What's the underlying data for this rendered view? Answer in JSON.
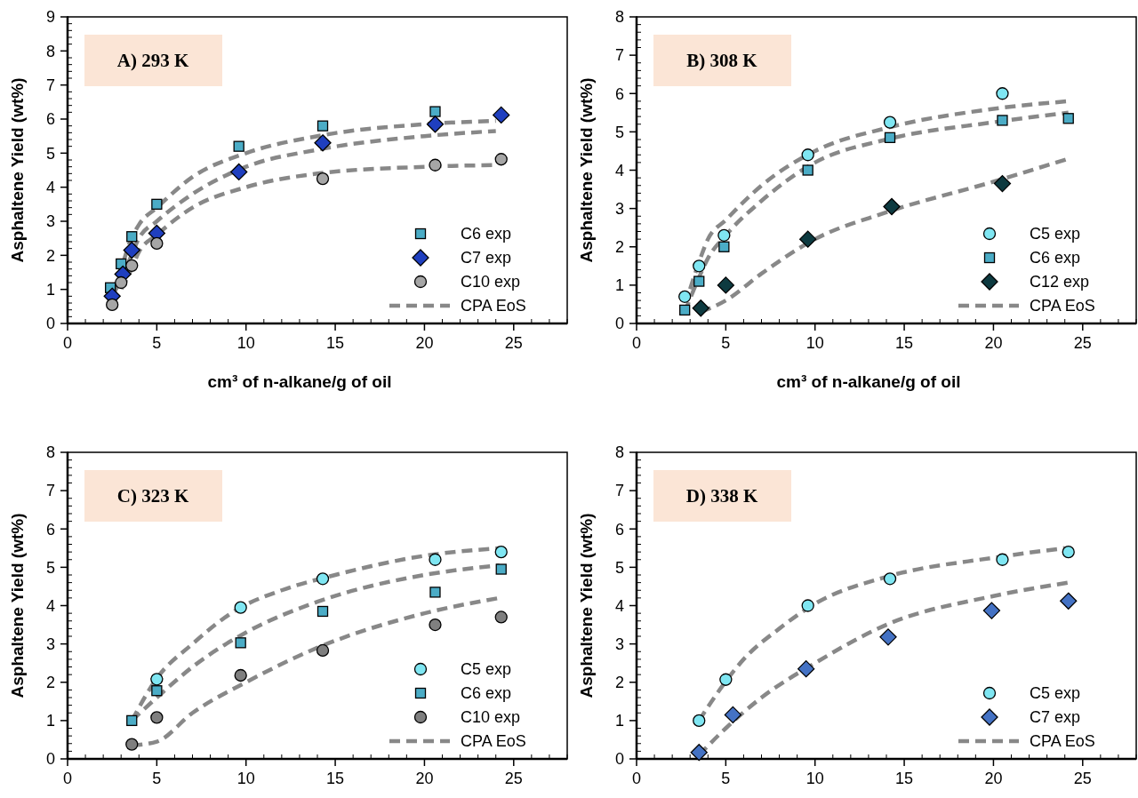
{
  "chart_data": [
    {
      "type": "scatter",
      "title": "A) 293 K",
      "xlabel": "cm³ of n-alkane/g of oil",
      "ylabel": "Asphaltene Yield (wt%)",
      "xlim": [
        0,
        28
      ],
      "xticks": [
        0,
        5,
        10,
        15,
        20,
        25
      ],
      "ylim": [
        0,
        9
      ],
      "yticks": [
        0,
        1,
        2,
        3,
        4,
        5,
        6,
        7,
        8,
        9
      ],
      "legend": "bottom right",
      "series": [
        {
          "name": "C6 exp",
          "marker": "square",
          "color": "#4bacc6",
          "x": [
            2.4,
            3.0,
            3.6,
            5.0,
            9.6,
            14.3,
            20.6
          ],
          "values": [
            1.05,
            1.75,
            2.55,
            3.5,
            5.2,
            5.8,
            6.22
          ]
        },
        {
          "name": "C7 exp",
          "marker": "diamond",
          "color": "#1f3fbf",
          "x": [
            2.5,
            3.1,
            3.6,
            5.0,
            9.6,
            14.3,
            20.6,
            24.3
          ],
          "values": [
            0.8,
            1.45,
            2.15,
            2.65,
            4.45,
            5.3,
            5.85,
            6.12
          ]
        },
        {
          "name": "C10 exp",
          "marker": "circle",
          "color": "#a6a6a6",
          "x": [
            2.5,
            3.0,
            3.6,
            5.0,
            14.3,
            20.6,
            24.3
          ],
          "values": [
            0.55,
            1.2,
            1.7,
            2.35,
            4.25,
            4.65,
            4.82
          ]
        },
        {
          "name": "CPA EoS",
          "type": "line",
          "marker": "none",
          "line_style": "dashed",
          "color": "#888888",
          "x": [
            2.5,
            3,
            3.5,
            4,
            5,
            7,
            10,
            14,
            20,
            24
          ],
          "values": [
            0.9,
            1.6,
            2.4,
            2.9,
            3.4,
            4.3,
            5.0,
            5.5,
            5.85,
            5.95
          ]
        },
        {
          "type": "line",
          "marker": "none",
          "line_style": "dashed",
          "color": "#888888",
          "x": [
            2.5,
            3,
            3.5,
            4,
            5,
            7,
            10,
            14,
            20,
            24
          ],
          "values": [
            0.8,
            1.3,
            1.9,
            2.5,
            3.0,
            3.8,
            4.6,
            5.1,
            5.5,
            5.65
          ]
        },
        {
          "type": "line",
          "marker": "none",
          "line_style": "dashed",
          "color": "#888888",
          "x": [
            2.5,
            3,
            3.5,
            4,
            5,
            7,
            10,
            14,
            20,
            24
          ],
          "values": [
            0.6,
            1.0,
            1.5,
            2.1,
            2.6,
            3.4,
            4.0,
            4.4,
            4.6,
            4.65
          ]
        }
      ]
    },
    {
      "type": "scatter",
      "title": "B) 308 K",
      "xlabel": "cm³ of n-alkane/g of oil",
      "ylabel": "Asphaltene Yield (wt%)",
      "xlim": [
        0,
        28
      ],
      "xticks": [
        0,
        5,
        10,
        15,
        20,
        25
      ],
      "ylim": [
        0,
        8
      ],
      "yticks": [
        0,
        1,
        2,
        3,
        4,
        5,
        6,
        7,
        8
      ],
      "legend": "bottom right",
      "series": [
        {
          "name": "C5 exp",
          "marker": "circle",
          "color": "#7fe6f2",
          "x": [
            2.7,
            3.5,
            4.9,
            9.6,
            14.2,
            20.5
          ],
          "values": [
            0.7,
            1.5,
            2.3,
            4.4,
            5.25,
            6.0
          ]
        },
        {
          "name": "C6 exp",
          "marker": "square",
          "color": "#4bacc6",
          "x": [
            2.7,
            3.5,
            4.9,
            9.6,
            14.2,
            20.5,
            24.2
          ],
          "values": [
            0.35,
            1.1,
            2.0,
            4.0,
            4.85,
            5.3,
            5.35
          ]
        },
        {
          "name": "C12 exp",
          "marker": "diamond",
          "color": "#0d3a40",
          "x": [
            3.6,
            5.0,
            9.6,
            14.3,
            20.5
          ],
          "values": [
            0.4,
            1.0,
            2.2,
            3.05,
            3.65
          ]
        },
        {
          "name": "CPA EoS",
          "type": "line",
          "marker": "none",
          "line_style": "dashed",
          "color": "#888888",
          "x": [
            3,
            3.5,
            4,
            5,
            7,
            10,
            14,
            20,
            24.2
          ],
          "values": [
            0.9,
            1.6,
            2.2,
            2.7,
            3.6,
            4.5,
            5.1,
            5.6,
            5.8
          ]
        },
        {
          "type": "line",
          "marker": "none",
          "line_style": "dashed",
          "color": "#888888",
          "x": [
            2.7,
            3.5,
            4,
            5,
            7,
            10,
            14,
            20,
            24.2
          ],
          "values": [
            0.3,
            1.2,
            1.7,
            2.3,
            3.2,
            4.2,
            4.8,
            5.25,
            5.5
          ]
        },
        {
          "type": "line",
          "marker": "none",
          "line_style": "dashed",
          "color": "#888888",
          "x": [
            3.6,
            5,
            7,
            10,
            14,
            20,
            24.2
          ],
          "values": [
            0.3,
            0.6,
            1.3,
            2.2,
            2.9,
            3.7,
            4.3
          ]
        }
      ]
    },
    {
      "type": "scatter",
      "title": "C) 323 K",
      "ylabel": "Asphaltene Yield (wt%)",
      "xlim": [
        0,
        28
      ],
      "xticks": [
        0,
        5,
        10,
        15,
        20,
        25
      ],
      "ylim": [
        0,
        8
      ],
      "yticks": [
        0,
        1,
        2,
        3,
        4,
        5,
        6,
        7,
        8
      ],
      "legend": "bottom right",
      "series": [
        {
          "name": "C5 exp",
          "marker": "circle",
          "color": "#7fe6f2",
          "x": [
            5.0,
            9.7,
            14.3,
            20.6,
            24.3
          ],
          "values": [
            2.08,
            3.95,
            4.7,
            5.2,
            5.4
          ]
        },
        {
          "name": "C6 exp",
          "marker": "square",
          "color": "#4bacc6",
          "x": [
            3.6,
            5.0,
            9.7,
            14.3,
            20.6,
            24.3
          ],
          "values": [
            1.0,
            1.78,
            3.03,
            3.85,
            4.35,
            4.95
          ]
        },
        {
          "name": "C10 exp",
          "marker": "circle",
          "color": "#7f7f7f",
          "x": [
            3.6,
            5.0,
            9.7,
            14.3,
            20.6,
            24.3
          ],
          "values": [
            0.38,
            1.08,
            2.18,
            2.83,
            3.5,
            3.7
          ]
        },
        {
          "name": "CPA EoS",
          "type": "line",
          "marker": "none",
          "line_style": "dashed",
          "color": "#888888",
          "x": [
            3.6,
            5,
            7,
            9.5,
            12,
            15,
            20,
            24.2
          ],
          "values": [
            1.0,
            2.1,
            3.0,
            3.9,
            4.4,
            4.8,
            5.3,
            5.5
          ]
        },
        {
          "type": "line",
          "marker": "none",
          "line_style": "dashed",
          "color": "#888888",
          "x": [
            3.6,
            5,
            7,
            10,
            14,
            20,
            24.2
          ],
          "values": [
            1.0,
            1.6,
            2.4,
            3.3,
            4.1,
            4.8,
            5.05
          ]
        },
        {
          "type": "line",
          "marker": "none",
          "line_style": "dashed",
          "color": "#888888",
          "x": [
            3.6,
            5,
            7,
            10,
            14,
            20,
            24.2
          ],
          "values": [
            0.35,
            0.45,
            1.2,
            2.0,
            2.9,
            3.8,
            4.2
          ]
        }
      ]
    },
    {
      "type": "scatter",
      "title": "D) 338 K",
      "ylabel": "Asphaltene Yield (wt%)",
      "xlim": [
        0,
        28
      ],
      "xticks": [
        0,
        5,
        10,
        15,
        20,
        25
      ],
      "ylim": [
        0,
        8
      ],
      "yticks": [
        0,
        1,
        2,
        3,
        4,
        5,
        6,
        7,
        8
      ],
      "legend": "bottom right",
      "series": [
        {
          "name": "C5 exp",
          "marker": "circle",
          "color": "#7fe6f2",
          "x": [
            3.5,
            5.0,
            9.6,
            14.2,
            20.5,
            24.2
          ],
          "values": [
            1.0,
            2.07,
            4.0,
            4.7,
            5.2,
            5.4
          ]
        },
        {
          "name": "C7 exp",
          "marker": "diamond",
          "color": "#4472c4",
          "x": [
            3.5,
            5.4,
            9.5,
            14.1,
            19.9,
            24.2
          ],
          "values": [
            0.17,
            1.15,
            2.35,
            3.18,
            3.87,
            4.12
          ]
        },
        {
          "name": "CPA EoS",
          "type": "line",
          "marker": "none",
          "line_style": "dashed",
          "color": "#888888",
          "x": [
            3.5,
            4.5,
            6,
            8,
            10,
            14,
            20,
            24
          ],
          "values": [
            1.0,
            1.7,
            2.6,
            3.4,
            4.05,
            4.75,
            5.25,
            5.5
          ]
        },
        {
          "type": "line",
          "marker": "none",
          "line_style": "dashed",
          "color": "#888888",
          "x": [
            3.5,
            5,
            7,
            10,
            14,
            20,
            24.2
          ],
          "values": [
            0.1,
            0.8,
            1.6,
            2.5,
            3.5,
            4.25,
            4.6
          ]
        }
      ]
    }
  ]
}
